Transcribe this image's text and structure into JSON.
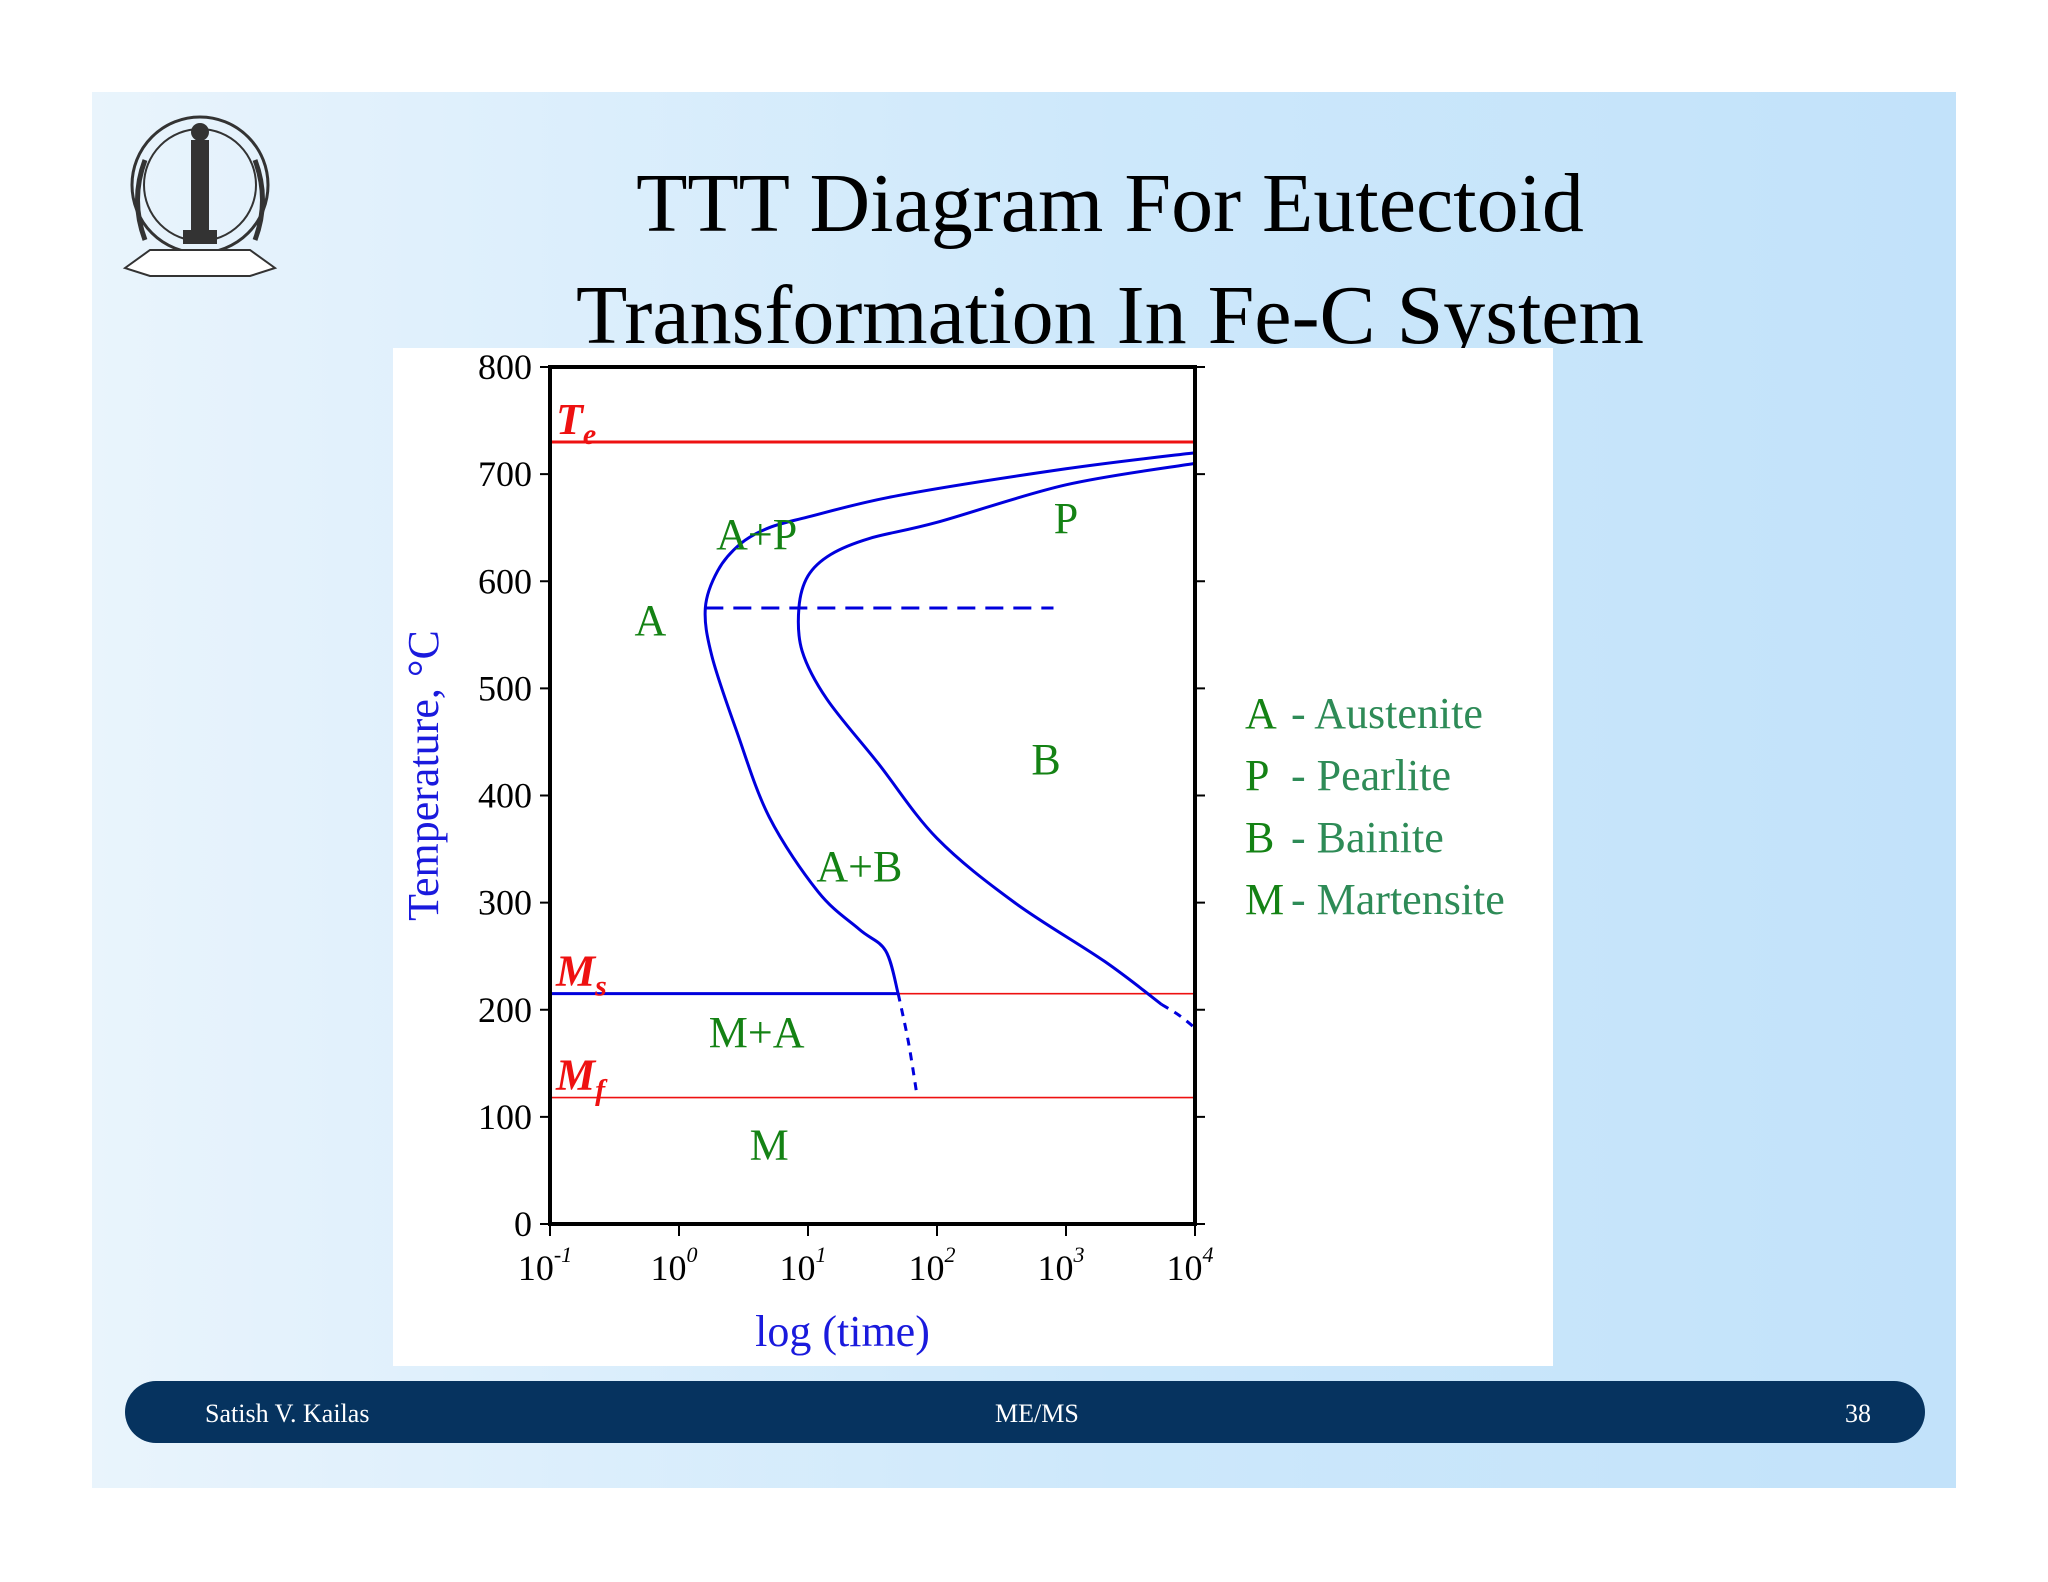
{
  "title_line1": "TTT Diagram For Eutectoid",
  "title_line2": "Transformation In Fe-C System",
  "logo_text": "INDIAN INSTITUTE OF SCIENCE",
  "footer": {
    "author": "Satish V. Kailas",
    "course": "ME/MS",
    "page": "38"
  },
  "legend": [
    {
      "key": "A",
      "text": "- Austenite"
    },
    {
      "key": "P",
      "text": "- Pearlite"
    },
    {
      "key": "B",
      "text": "- Bainite"
    },
    {
      "key": "M",
      "text": "- Martensite"
    }
  ],
  "colors": {
    "curve": "#0000dd",
    "temp_line": "#ee1111",
    "phase_label": "#148214",
    "legend_text": "#2e8b57",
    "axis_label": "#1a1add",
    "footer_bar": "#06335f"
  },
  "chart_data": {
    "type": "line",
    "xlabel": "log (time)",
    "ylabel": "Temperature, °C",
    "x_scale": "log",
    "xlim": [
      0.1,
      10000
    ],
    "ylim": [
      0,
      800
    ],
    "x_ticks": [
      {
        "base": "10",
        "exp": "-1"
      },
      {
        "base": "10",
        "exp": "0"
      },
      {
        "base": "10",
        "exp": "1"
      },
      {
        "base": "10",
        "exp": "2"
      },
      {
        "base": "10",
        "exp": "3"
      },
      {
        "base": "10",
        "exp": "4"
      }
    ],
    "y_ticks": [
      "800",
      "700",
      "600",
      "500",
      "400",
      "300",
      "200",
      "100",
      "0"
    ],
    "grid": false,
    "reference_lines": [
      {
        "label_main": "T",
        "label_sub": "e",
        "temperature": 730
      },
      {
        "label_main": "M",
        "label_sub": "s",
        "temperature": 215
      },
      {
        "label_main": "M",
        "label_sub": "f",
        "temperature": 118
      }
    ],
    "series": [
      {
        "name": "start",
        "x": [
          10000,
          1000,
          50,
          10,
          5,
          3,
          2,
          1.6,
          1.8,
          2.8,
          5,
          12,
          25,
          40,
          50
        ],
        "y": [
          720,
          705,
          680,
          660,
          650,
          635,
          610,
          575,
          530,
          460,
          380,
          310,
          275,
          255,
          215
        ]
      },
      {
        "name": "finish",
        "x": [
          10000,
          1000,
          100,
          30,
          15,
          10,
          8.5,
          9,
          14,
          35,
          100,
          400,
          2000,
          5500
        ],
        "y": [
          710,
          690,
          655,
          640,
          625,
          605,
          575,
          535,
          490,
          430,
          360,
          300,
          245,
          205
        ]
      },
      {
        "name": "start_dashed",
        "x": [
          50,
          60,
          70
        ],
        "y": [
          215,
          170,
          120
        ]
      },
      {
        "name": "finish_dashed",
        "x": [
          5500,
          7500,
          10000
        ],
        "y": [
          205,
          195,
          183
        ]
      },
      {
        "name": "nose",
        "x": [
          1.6,
          800
        ],
        "y": [
          575,
          575
        ]
      }
    ],
    "regions": [
      {
        "label": "A",
        "x": 0.6,
        "y": 550
      },
      {
        "label": "A+P",
        "x": 4,
        "y": 630
      },
      {
        "label": "P",
        "x": 1000,
        "y": 645
      },
      {
        "label": "B",
        "x": 700,
        "y": 420
      },
      {
        "label": "A+B",
        "x": 25,
        "y": 320
      },
      {
        "label": "M+A",
        "x": 4,
        "y": 165
      },
      {
        "label": "M",
        "x": 5,
        "y": 60
      }
    ]
  }
}
